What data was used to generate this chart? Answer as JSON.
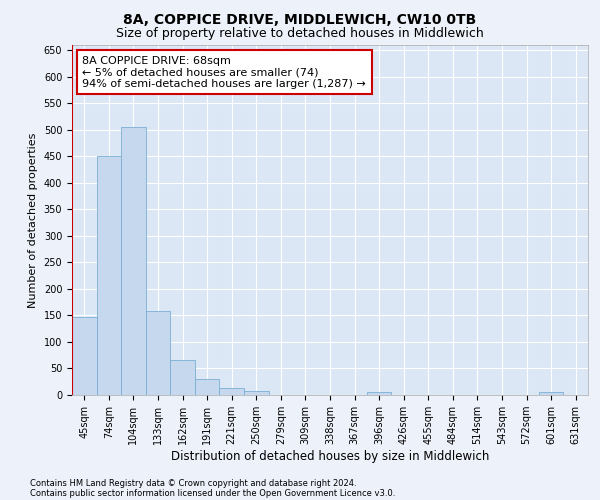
{
  "title": "8A, COPPICE DRIVE, MIDDLEWICH, CW10 0TB",
  "subtitle": "Size of property relative to detached houses in Middlewich",
  "xlabel": "Distribution of detached houses by size in Middlewich",
  "ylabel": "Number of detached properties",
  "footnote1": "Contains HM Land Registry data © Crown copyright and database right 2024.",
  "footnote2": "Contains public sector information licensed under the Open Government Licence v3.0.",
  "categories": [
    "45sqm",
    "74sqm",
    "104sqm",
    "133sqm",
    "162sqm",
    "191sqm",
    "221sqm",
    "250sqm",
    "279sqm",
    "309sqm",
    "338sqm",
    "367sqm",
    "396sqm",
    "426sqm",
    "455sqm",
    "484sqm",
    "514sqm",
    "543sqm",
    "572sqm",
    "601sqm",
    "631sqm"
  ],
  "values": [
    147,
    450,
    506,
    158,
    66,
    30,
    14,
    8,
    0,
    0,
    0,
    0,
    6,
    0,
    0,
    0,
    0,
    0,
    0,
    6,
    0
  ],
  "bar_color": "#c5d8ee",
  "bar_edge_color": "#7aafd4",
  "annotation_text": "8A COPPICE DRIVE: 68sqm\n← 5% of detached houses are smaller (74)\n94% of semi-detached houses are larger (1,287) →",
  "annotation_box_facecolor": "#ffffff",
  "annotation_box_edgecolor": "#cc0000",
  "ylim": [
    0,
    660
  ],
  "yticks": [
    0,
    50,
    100,
    150,
    200,
    250,
    300,
    350,
    400,
    450,
    500,
    550,
    600,
    650
  ],
  "bg_color": "#edf1f9",
  "plot_bg": "#dce7f5",
  "grid_color": "#ffffff",
  "red_line_color": "#cc0000",
  "title_fontsize": 10,
  "subtitle_fontsize": 9,
  "tick_fontsize": 7,
  "ylabel_fontsize": 8,
  "xlabel_fontsize": 8.5,
  "annotation_fontsize": 8,
  "footnote_fontsize": 6
}
